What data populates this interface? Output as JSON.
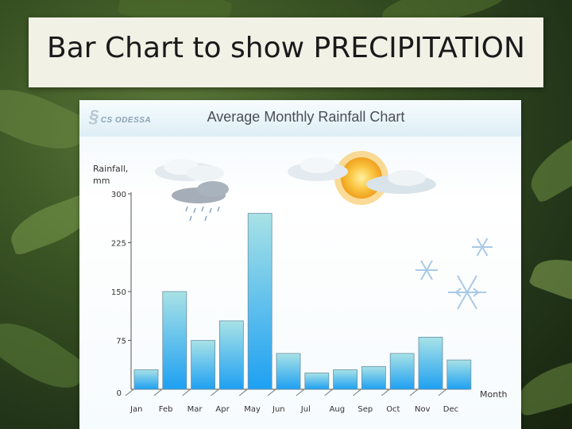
{
  "slide": {
    "title": "Bar Chart to show PRECIPITATION"
  },
  "chart_panel": {
    "logo_text": "CS ODESSA"
  },
  "chart_data": {
    "type": "bar",
    "title": "Average Monthly Rainfall Chart",
    "ylabel": "Rainfall, mm",
    "xlabel": "Month",
    "categories": [
      "Jan",
      "Feb",
      "Mar",
      "Apr",
      "May",
      "Jun",
      "Jul",
      "Aug",
      "Sep",
      "Oct",
      "Nov",
      "Dec"
    ],
    "values": [
      30,
      150,
      75,
      105,
      270,
      55,
      25,
      30,
      35,
      55,
      80,
      45
    ],
    "ylim": [
      0,
      300
    ],
    "yticks": [
      0,
      75,
      150,
      225,
      300
    ],
    "grid": false,
    "bar_color_top": "#a8e2e6",
    "bar_color_bottom": "#1ea0f2"
  },
  "decorations": [
    "rain-cloud-icon",
    "sun-with-clouds-icon",
    "snowflake-icon"
  ],
  "colors": {
    "background": "#2f4a1f",
    "title_box": "#f2f1e6",
    "panel_header": "#ddeef5"
  }
}
